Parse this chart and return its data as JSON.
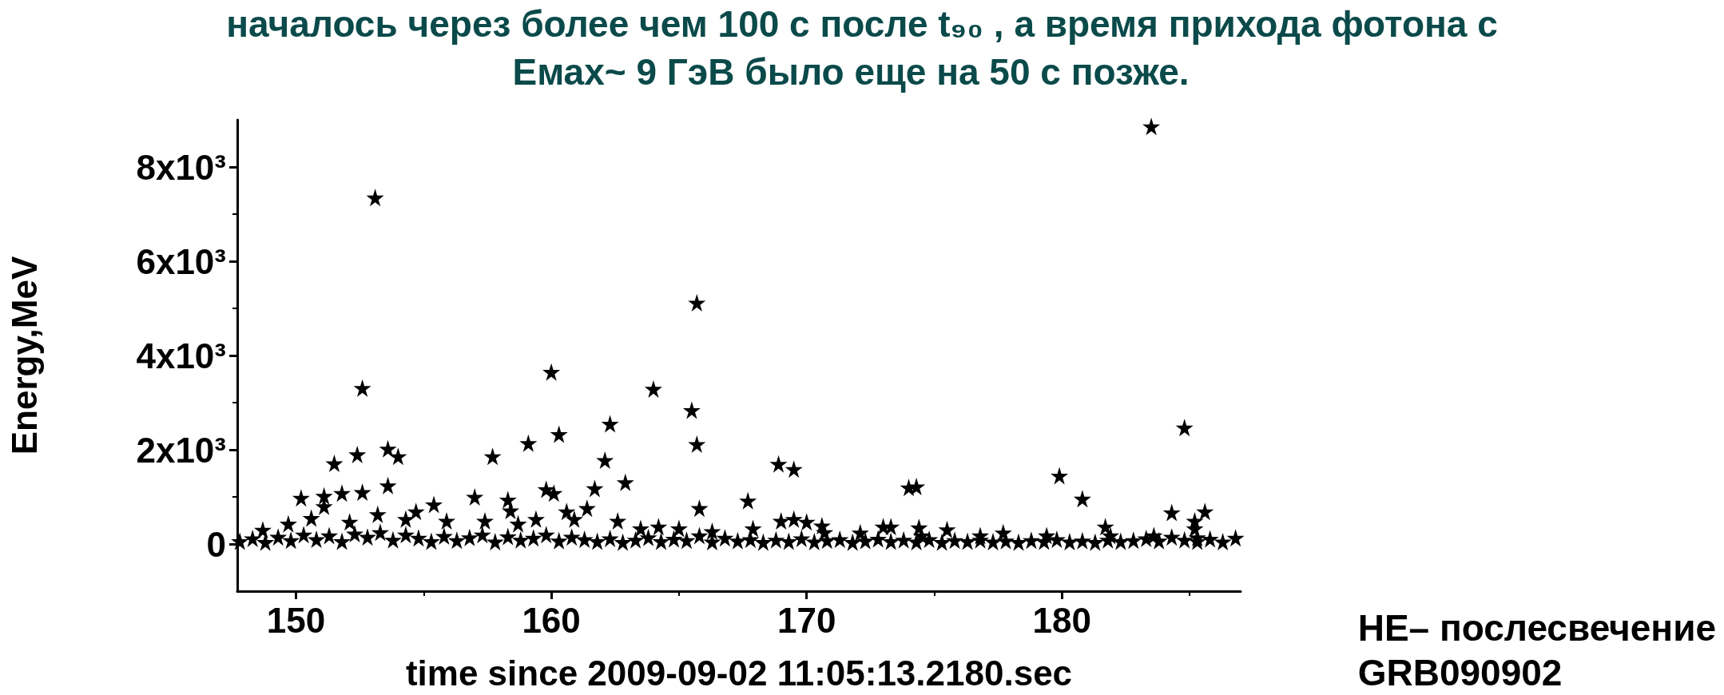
{
  "chart_data": {
    "type": "scatter",
    "title": "началось через более чем 100 с после t₉₀ , а время прихода фотона с",
    "subtitle": "Емах~ 9 ГэВ было еще на 50 с позже.",
    "xlabel": "time since 2009-09-02 11:05:13.2180.sec",
    "ylabel": "Energy,MeV",
    "annotations": [
      "HE– послесвечение GRB090902"
    ],
    "marker": "star",
    "grid": false,
    "xlim": [
      147.7,
      187
    ],
    "xticks": [
      150,
      160,
      170,
      180
    ],
    "ylim": [
      -1000,
      9000
    ],
    "yticks": [
      0,
      {
        "value": 2000,
        "label": "2x10³"
      },
      {
        "value": 4000,
        "label": "4x10³"
      },
      {
        "value": 6000,
        "label": "6x10³"
      },
      {
        "value": 8000,
        "label": "8x10³"
      }
    ],
    "series": [
      {
        "color": "#000000",
        "x": [
          153.1,
          152.6,
          152.4,
          151.5,
          153.6,
          154.0,
          160.0,
          160.3,
          159.1,
          157.7,
          162.3,
          162.1,
          162.9,
          164.0,
          165.5,
          165.7,
          165.7,
          165.8,
          168.9,
          169.5,
          167.7,
          174.0,
          174.3,
          179.9,
          180.8,
          184.8,
          183.5,
          185.6,
          185.2,
          185.2,
          150.2,
          151.1,
          151.8,
          152.6,
          153.6,
          151.1,
          155.4,
          157.0,
          158.3,
          158.4,
          159.8,
          160.1,
          160.6,
          161.4,
          161.7,
          162.6,
          169.0,
          169.5,
          170.0,
          170.6,
          173.0,
          174.4,
          173.3,
          175.5,
          177.7,
          181.7,
          184.3,
          148.7,
          149.7,
          150.6,
          153.2,
          152.1,
          154.3,
          154.7,
          155.9,
          157.4,
          158.7,
          159.4,
          160.9,
          163.5,
          164.2,
          165.0,
          166.3,
          167.9,
          170.7,
          172.1,
          174.5,
          176.8,
          179.4,
          181.9,
          183.6,
          185.3,
          147.8,
          148.3,
          148.8,
          149.3,
          149.8,
          150.3,
          150.8,
          151.3,
          151.8,
          152.3,
          152.8,
          153.3,
          153.8,
          154.3,
          154.8,
          155.3,
          155.8,
          156.3,
          156.8,
          157.3,
          157.8,
          158.3,
          158.8,
          159.3,
          159.8,
          160.3,
          160.8,
          161.3,
          161.8,
          162.3,
          162.8,
          163.3,
          163.8,
          164.3,
          164.8,
          165.3,
          165.8,
          166.3,
          166.8,
          167.3,
          167.8,
          168.3,
          168.8,
          169.3,
          169.8,
          170.3,
          170.8,
          171.3,
          171.8,
          172.3,
          172.8,
          173.3,
          173.8,
          174.3,
          174.8,
          175.3,
          175.8,
          176.3,
          176.8,
          177.3,
          177.8,
          178.3,
          178.8,
          179.3,
          179.8,
          180.3,
          180.8,
          181.3,
          181.8,
          182.3,
          182.8,
          183.3,
          183.8,
          184.3,
          184.8,
          185.3,
          185.8,
          186.3,
          186.8
        ],
        "values": [
          7350,
          3310,
          1900,
          1710,
          2020,
          1860,
          3650,
          2330,
          2140,
          1860,
          2550,
          1780,
          1310,
          3290,
          2840,
          5120,
          2120,
          760,
          1700,
          1590,
          920,
          1200,
          1220,
          1450,
          960,
          2470,
          8860,
          690,
          490,
          330,
          980,
          1020,
          1080,
          1100,
          1240,
          800,
          840,
          1000,
          940,
          710,
          1160,
          1080,
          690,
          760,
          1180,
          490,
          490,
          530,
          470,
          390,
          370,
          350,
          370,
          310,
          240,
          370,
          670,
          300,
          430,
          550,
          630,
          470,
          530,
          690,
          490,
          490,
          430,
          530,
          530,
          330,
          370,
          330,
          270,
          330,
          250,
          240,
          180,
          180,
          180,
          180,
          180,
          140,
          60,
          120,
          40,
          150,
          80,
          200,
          100,
          180,
          60,
          220,
          150,
          250,
          90,
          200,
          130,
          60,
          170,
          80,
          140,
          200,
          50,
          160,
          90,
          130,
          200,
          70,
          150,
          100,
          60,
          120,
          40,
          90,
          140,
          60,
          110,
          80,
          180,
          50,
          130,
          70,
          100,
          40,
          90,
          60,
          120,
          50,
          80,
          100,
          40,
          70,
          110,
          60,
          90,
          50,
          100,
          40,
          80,
          60,
          90,
          50,
          70,
          40,
          80,
          60,
          100,
          50,
          70,
          40,
          90,
          60,
          80,
          120,
          70,
          150,
          90,
          60,
          110,
          50,
          130
        ]
      }
    ]
  }
}
